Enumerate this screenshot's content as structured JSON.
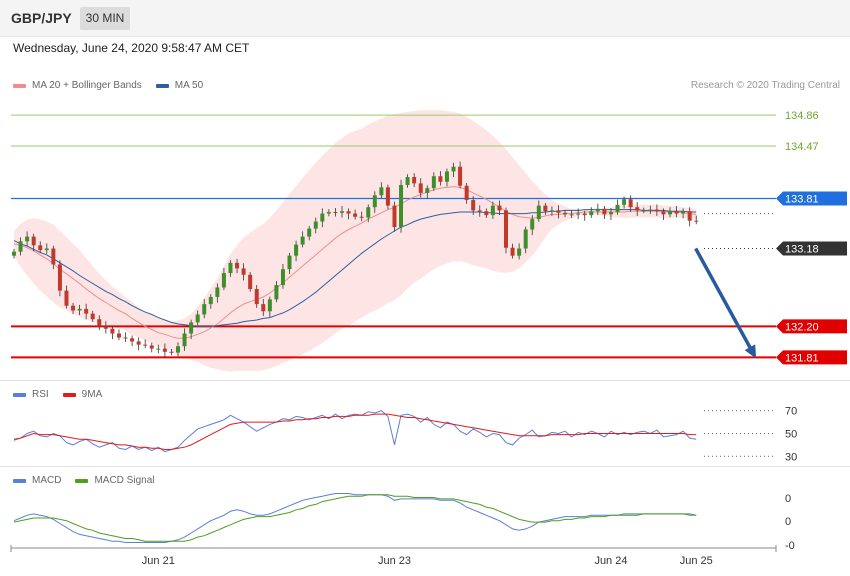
{
  "header": {
    "symbol": "GBP/JPY",
    "timeframe": "30 MIN"
  },
  "datetime": "Wednesday, June 24, 2020 9:58:47 AM CET",
  "credit": "Research © 2020 Trading Central",
  "legends": {
    "main": [
      {
        "label": "MA 20 + Bollinger Bands",
        "color": "#f28b8b"
      },
      {
        "label": "MA 50",
        "color": "#2e5f9e"
      }
    ],
    "rsi": [
      {
        "label": "RSI",
        "color": "#5b7fd6"
      },
      {
        "label": "9MA",
        "color": "#e01b1b"
      }
    ],
    "macd": [
      {
        "label": "MACD",
        "color": "#5b7fd6"
      },
      {
        "label": "MACD Signal",
        "color": "#4f9e1f"
      }
    ]
  },
  "chart_data": [
    {
      "type": "candlestick",
      "ylim": [
        131.55,
        135.1
      ],
      "levels": [
        {
          "value": 134.86,
          "label": "134.86",
          "color": "#6aaa2f",
          "style": "text"
        },
        {
          "value": 134.47,
          "label": "134.47",
          "color": "#6aaa2f",
          "style": "text"
        },
        {
          "value": 133.81,
          "label": "133.81",
          "color": "#1f6fe0",
          "style": "tag"
        },
        {
          "value": 133.18,
          "label": "133.18",
          "color": "#333333",
          "style": "tag"
        },
        {
          "value": 132.2,
          "label": "132.20",
          "color": "#e00000",
          "style": "tag"
        },
        {
          "value": 131.81,
          "label": "131.81",
          "color": "#e00000",
          "style": "tag"
        }
      ],
      "xticks": [
        {
          "label": "Jun 21",
          "index": 22
        },
        {
          "label": "Jun 23",
          "index": 58
        },
        {
          "label": "Jun 24",
          "index": 91
        },
        {
          "label": "Jun 25",
          "index": 104
        }
      ],
      "forecast_arrow": {
        "from": {
          "index": 103,
          "value": 133.18
        },
        "to": {
          "index": 113,
          "value": 131.81
        }
      },
      "close": [
        133.14,
        133.27,
        133.33,
        133.22,
        133.16,
        133.18,
        132.98,
        132.65,
        132.46,
        132.4,
        132.42,
        132.36,
        132.29,
        132.2,
        132.17,
        132.11,
        132.06,
        132.05,
        132.01,
        131.97,
        131.96,
        131.92,
        131.92,
        131.88,
        131.87,
        131.95,
        132.11,
        132.25,
        132.35,
        132.48,
        132.57,
        132.69,
        132.87,
        133.0,
        132.93,
        132.85,
        132.67,
        132.48,
        132.39,
        132.54,
        132.72,
        132.92,
        133.09,
        133.23,
        133.33,
        133.43,
        133.52,
        133.62,
        133.64,
        133.63,
        133.65,
        133.62,
        133.58,
        133.57,
        133.7,
        133.85,
        133.95,
        133.72,
        133.45,
        133.98,
        134.08,
        134.0,
        133.88,
        133.94,
        134.09,
        134.02,
        134.15,
        134.21,
        133.97,
        133.79,
        133.66,
        133.65,
        133.6,
        133.72,
        133.66,
        133.19,
        133.09,
        133.18,
        133.42,
        133.55,
        133.72,
        133.65,
        133.66,
        133.63,
        133.61,
        133.61,
        133.62,
        133.6,
        133.65,
        133.68,
        133.61,
        133.64,
        133.73,
        133.8,
        133.7,
        133.66,
        133.66,
        133.67,
        133.65,
        133.61,
        133.65,
        133.62,
        133.65,
        133.53,
        133.52
      ],
      "ma20": [
        133.24,
        133.22,
        133.19,
        133.15,
        133.1,
        133.05,
        132.99,
        132.92,
        132.86,
        132.8,
        132.74,
        132.67,
        132.61,
        132.55,
        132.5,
        132.45,
        132.4,
        132.36,
        132.3,
        132.25,
        132.2,
        132.16,
        132.12,
        132.1,
        132.07,
        132.05,
        132.05,
        132.07,
        132.1,
        132.13,
        132.18,
        132.23,
        132.3,
        132.37,
        132.43,
        132.48,
        132.51,
        132.54,
        132.57,
        132.62,
        132.68,
        132.75,
        132.82,
        132.89,
        132.96,
        133.03,
        133.1,
        133.17,
        133.24,
        133.31,
        133.37,
        133.42,
        133.46,
        133.5,
        133.55,
        133.59,
        133.63,
        133.67,
        133.7,
        133.74,
        133.79,
        133.83,
        133.86,
        133.89,
        133.92,
        133.94,
        133.95,
        133.96,
        133.95,
        133.92,
        133.88,
        133.84,
        133.8,
        133.75,
        133.7,
        133.65,
        133.61,
        133.58,
        133.57,
        133.56,
        133.57,
        133.59,
        133.61,
        133.61,
        133.62,
        133.62,
        133.63,
        133.64,
        133.64,
        133.64,
        133.64,
        133.64,
        133.64,
        133.64,
        133.65,
        133.65,
        133.65,
        133.65,
        133.65,
        133.64,
        133.64,
        133.64,
        133.63,
        133.62,
        133.61
      ],
      "ma50": [
        133.28,
        133.24,
        133.21,
        133.17,
        133.13,
        133.1,
        133.05,
        133.0,
        132.95,
        132.9,
        132.84,
        132.79,
        132.74,
        132.69,
        132.64,
        132.6,
        132.55,
        132.51,
        132.46,
        132.42,
        132.38,
        132.35,
        132.31,
        132.28,
        132.25,
        132.23,
        132.22,
        132.21,
        132.2,
        132.2,
        132.2,
        132.21,
        132.22,
        132.23,
        132.24,
        132.26,
        132.27,
        132.28,
        132.3,
        132.31,
        132.34,
        132.37,
        132.41,
        132.46,
        132.51,
        132.57,
        132.63,
        132.7,
        132.77,
        132.84,
        132.91,
        132.98,
        133.05,
        133.12,
        133.18,
        133.24,
        133.3,
        133.35,
        133.4,
        133.45,
        133.48,
        133.52,
        133.55,
        133.57,
        133.59,
        133.61,
        133.62,
        133.63,
        133.64,
        133.64,
        133.64,
        133.64,
        133.63,
        133.63,
        133.62,
        133.62,
        133.62,
        133.62,
        133.62,
        133.63,
        133.63,
        133.64,
        133.65,
        133.65,
        133.66,
        133.66,
        133.66,
        133.67,
        133.67,
        133.67,
        133.67,
        133.67,
        133.67,
        133.67,
        133.67,
        133.67,
        133.66,
        133.66,
        133.66,
        133.66,
        133.65,
        133.65,
        133.65,
        133.64,
        133.64
      ],
      "bb_upper": [
        133.4,
        133.49,
        133.54,
        133.56,
        133.55,
        133.52,
        133.48,
        133.4,
        133.32,
        133.24,
        133.16,
        133.06,
        132.96,
        132.86,
        132.78,
        132.7,
        132.63,
        132.57,
        132.51,
        132.44,
        132.38,
        132.34,
        132.3,
        132.28,
        132.26,
        132.27,
        132.3,
        132.36,
        132.45,
        132.55,
        132.68,
        132.8,
        132.96,
        133.11,
        133.22,
        133.32,
        133.38,
        133.44,
        133.49,
        133.57,
        133.66,
        133.76,
        133.87,
        133.97,
        134.07,
        134.17,
        134.26,
        134.35,
        134.43,
        134.51,
        134.57,
        134.63,
        134.66,
        134.69,
        134.74,
        134.78,
        134.82,
        134.85,
        134.87,
        134.89,
        134.9,
        134.91,
        134.92,
        134.92,
        134.92,
        134.92,
        134.91,
        134.9,
        134.88,
        134.84,
        134.79,
        134.73,
        134.67,
        134.6,
        134.52,
        134.43,
        134.33,
        134.23,
        134.13,
        134.03,
        133.94,
        133.86,
        133.79,
        133.74,
        133.71,
        133.68,
        133.67,
        133.67,
        133.67,
        133.68,
        133.69,
        133.7,
        133.71,
        133.72,
        133.73,
        133.73,
        133.73,
        133.73,
        133.73,
        133.72,
        133.72,
        133.71,
        133.7,
        133.69,
        133.68
      ],
      "bb_lower": [
        133.08,
        132.95,
        132.84,
        132.74,
        132.65,
        132.58,
        132.5,
        132.44,
        132.4,
        132.36,
        132.32,
        132.28,
        132.26,
        132.24,
        132.22,
        132.2,
        132.17,
        132.15,
        132.09,
        132.06,
        132.02,
        131.98,
        131.94,
        131.92,
        131.88,
        131.83,
        131.8,
        131.78,
        131.75,
        131.71,
        131.68,
        131.66,
        131.64,
        131.63,
        131.64,
        131.64,
        131.64,
        131.64,
        131.65,
        131.67,
        131.7,
        131.74,
        131.77,
        131.81,
        131.85,
        131.89,
        131.94,
        131.99,
        132.05,
        132.11,
        132.17,
        132.21,
        132.26,
        132.31,
        132.36,
        132.4,
        132.44,
        132.49,
        132.53,
        132.59,
        132.68,
        132.75,
        132.8,
        132.86,
        132.92,
        132.96,
        132.99,
        133.02,
        133.02,
        133.0,
        132.97,
        132.95,
        132.93,
        132.9,
        132.88,
        132.87,
        132.89,
        132.93,
        133.01,
        133.09,
        133.2,
        133.32,
        133.43,
        133.48,
        133.53,
        133.56,
        133.59,
        133.61,
        133.61,
        133.6,
        133.59,
        133.58,
        133.57,
        133.56,
        133.57,
        133.57,
        133.57,
        133.57,
        133.57,
        133.56,
        133.56,
        133.57,
        133.56,
        133.55,
        133.54
      ]
    },
    {
      "type": "line",
      "name": "RSI",
      "yticks": [
        70,
        50,
        30
      ],
      "ylim": [
        25,
        75
      ],
      "series": [
        {
          "name": "RSI",
          "color": "#5b7fd6",
          "values": [
            44,
            46,
            50,
            52,
            48,
            47,
            50,
            48,
            42,
            40,
            43,
            45,
            41,
            38,
            40,
            42,
            37,
            36,
            39,
            36,
            38,
            35,
            38,
            34,
            36,
            38,
            44,
            49,
            54,
            56,
            58,
            60,
            62,
            66,
            63,
            60,
            56,
            52,
            55,
            58,
            60,
            63,
            62,
            65,
            64,
            62,
            64,
            66,
            63,
            67,
            63,
            66,
            67,
            66,
            69,
            68,
            70,
            65,
            40,
            66,
            67,
            65,
            60,
            64,
            58,
            55,
            60,
            58,
            52,
            49,
            54,
            51,
            47,
            50,
            49,
            42,
            40,
            46,
            49,
            53,
            47,
            48,
            51,
            50,
            52,
            47,
            51,
            49,
            52,
            50,
            47,
            52,
            49,
            51,
            49,
            51,
            52,
            50,
            53,
            47,
            48,
            49,
            52,
            46,
            45
          ]
        },
        {
          "name": "9MA",
          "color": "#e01b1b",
          "values": [
            45,
            46,
            48,
            50,
            49,
            49,
            49,
            48,
            47,
            46,
            45,
            45,
            44,
            43,
            42,
            41,
            40,
            40,
            39,
            38,
            38,
            37,
            37,
            36,
            36,
            37,
            38,
            40,
            43,
            46,
            49,
            52,
            55,
            58,
            59,
            60,
            60,
            60,
            60,
            60,
            60,
            61,
            61,
            62,
            62,
            63,
            63,
            64,
            64,
            65,
            65,
            65,
            66,
            66,
            66,
            67,
            67,
            67,
            66,
            65,
            64,
            64,
            63,
            62,
            61,
            60,
            59,
            58,
            57,
            56,
            55,
            54,
            53,
            52,
            51,
            50,
            49,
            48,
            48,
            48,
            48,
            48,
            49,
            49,
            49,
            49,
            49,
            50,
            50,
            50,
            50,
            50,
            50,
            50,
            50,
            50,
            50,
            50,
            50,
            50,
            50,
            50,
            50,
            49,
            49
          ]
        }
      ]
    },
    {
      "type": "line",
      "name": "MACD",
      "ytick_labels": [
        "0",
        "0",
        "-0"
      ],
      "ylim": [
        -0.26,
        0.18
      ],
      "series": [
        {
          "name": "MACD",
          "color": "#5b7fd6",
          "values": [
            -0.06,
            -0.04,
            -0.02,
            -0.01,
            -0.02,
            -0.03,
            -0.05,
            -0.08,
            -0.11,
            -0.14,
            -0.16,
            -0.17,
            -0.18,
            -0.19,
            -0.2,
            -0.21,
            -0.21,
            -0.22,
            -0.22,
            -0.22,
            -0.22,
            -0.22,
            -0.22,
            -0.22,
            -0.21,
            -0.2,
            -0.18,
            -0.15,
            -0.12,
            -0.09,
            -0.06,
            -0.04,
            -0.02,
            0.01,
            0.02,
            0.01,
            -0.01,
            -0.02,
            -0.02,
            -0.01,
            0.01,
            0.03,
            0.05,
            0.07,
            0.09,
            0.1,
            0.11,
            0.12,
            0.13,
            0.14,
            0.14,
            0.14,
            0.13,
            0.13,
            0.13,
            0.13,
            0.13,
            0.12,
            0.09,
            0.1,
            0.1,
            0.1,
            0.1,
            0.1,
            0.1,
            0.09,
            0.09,
            0.09,
            0.07,
            0.04,
            0.02,
            0.0,
            -0.02,
            -0.04,
            -0.06,
            -0.09,
            -0.12,
            -0.13,
            -0.12,
            -0.1,
            -0.07,
            -0.06,
            -0.05,
            -0.04,
            -0.03,
            -0.03,
            -0.03,
            -0.03,
            -0.02,
            -0.02,
            -0.02,
            -0.02,
            -0.02,
            -0.01,
            -0.01,
            -0.01,
            -0.01,
            -0.01,
            -0.01,
            -0.01,
            -0.01,
            -0.01,
            -0.01,
            -0.02,
            -0.02
          ]
        },
        {
          "name": "MACD Signal",
          "color": "#4f9e1f",
          "values": [
            -0.07,
            -0.06,
            -0.05,
            -0.04,
            -0.04,
            -0.04,
            -0.04,
            -0.05,
            -0.06,
            -0.08,
            -0.1,
            -0.12,
            -0.13,
            -0.15,
            -0.16,
            -0.17,
            -0.18,
            -0.19,
            -0.19,
            -0.2,
            -0.21,
            -0.21,
            -0.21,
            -0.21,
            -0.21,
            -0.21,
            -0.21,
            -0.2,
            -0.18,
            -0.17,
            -0.15,
            -0.13,
            -0.11,
            -0.09,
            -0.07,
            -0.05,
            -0.04,
            -0.03,
            -0.03,
            -0.03,
            -0.02,
            -0.01,
            0.0,
            0.02,
            0.03,
            0.05,
            0.06,
            0.08,
            0.09,
            0.1,
            0.11,
            0.12,
            0.12,
            0.12,
            0.13,
            0.13,
            0.13,
            0.13,
            0.12,
            0.12,
            0.12,
            0.11,
            0.11,
            0.11,
            0.11,
            0.1,
            0.1,
            0.1,
            0.09,
            0.08,
            0.07,
            0.06,
            0.04,
            0.03,
            0.01,
            -0.01,
            -0.03,
            -0.05,
            -0.06,
            -0.07,
            -0.07,
            -0.07,
            -0.06,
            -0.06,
            -0.05,
            -0.05,
            -0.04,
            -0.04,
            -0.03,
            -0.03,
            -0.03,
            -0.02,
            -0.02,
            -0.02,
            -0.02,
            -0.02,
            -0.01,
            -0.01,
            -0.01,
            -0.01,
            -0.01,
            -0.01,
            -0.01,
            -0.01,
            -0.02
          ]
        }
      ]
    }
  ]
}
